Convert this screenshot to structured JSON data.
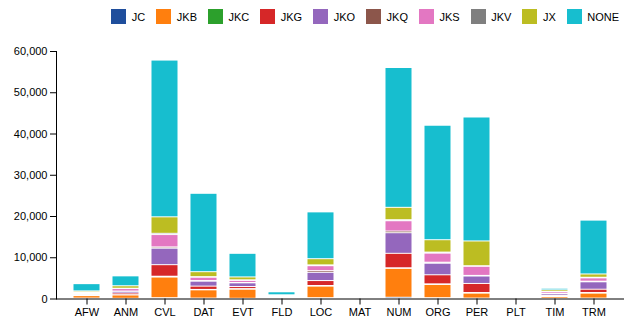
{
  "chart_data": {
    "type": "bar",
    "stacked": true,
    "categories": [
      "AFW",
      "ANM",
      "CVL",
      "DAT",
      "EVT",
      "FLD",
      "LOC",
      "MAT",
      "NUM",
      "ORG",
      "PER",
      "PLT",
      "TIM",
      "TRM"
    ],
    "series": [
      {
        "name": "JC",
        "color": "#1f4e9c",
        "values": [
          100,
          50,
          200,
          100,
          50,
          30,
          200,
          20,
          300,
          200,
          100,
          20,
          50,
          100
        ]
      },
      {
        "name": "JKB",
        "color": "#ff7f0e",
        "values": [
          600,
          800,
          5000,
          2000,
          2200,
          200,
          2800,
          30,
          7000,
          3200,
          1200,
          80,
          400,
          1200
        ]
      },
      {
        "name": "JKC",
        "color": "#2ca02c",
        "values": [
          80,
          80,
          200,
          100,
          150,
          30,
          150,
          20,
          150,
          150,
          150,
          20,
          40,
          150
        ]
      },
      {
        "name": "JKG",
        "color": "#d62728",
        "values": [
          150,
          400,
          2800,
          800,
          500,
          80,
          1200,
          30,
          3500,
          2200,
          2200,
          30,
          250,
          800
        ]
      },
      {
        "name": "JKO",
        "color": "#9467bd",
        "values": [
          250,
          400,
          4000,
          1200,
          900,
          150,
          2000,
          30,
          5000,
          2800,
          1800,
          80,
          400,
          1800
        ]
      },
      {
        "name": "JKQ",
        "color": "#8c564b",
        "values": [
          80,
          80,
          300,
          150,
          80,
          30,
          400,
          20,
          400,
          250,
          150,
          20,
          80,
          150
        ]
      },
      {
        "name": "JKS",
        "color": "#e377c2",
        "values": [
          200,
          600,
          3000,
          800,
          500,
          150,
          1200,
          30,
          2500,
          2200,
          2200,
          80,
          400,
          800
        ]
      },
      {
        "name": "JKV",
        "color": "#7f7f7f",
        "values": [
          80,
          80,
          300,
          150,
          150,
          30,
          200,
          20,
          250,
          250,
          150,
          20,
          80,
          150
        ]
      },
      {
        "name": "JX",
        "color": "#bcbd22",
        "values": [
          300,
          600,
          4000,
          1200,
          700,
          200,
          1500,
          30,
          3000,
          3000,
          6000,
          80,
          400,
          800
        ]
      },
      {
        "name": "NONE",
        "color": "#17becf",
        "values": [
          1760,
          2400,
          38000,
          19000,
          5720,
          730,
          11350,
          220,
          33900,
          27750,
          30050,
          170,
          380,
          13050
        ]
      }
    ],
    "ylim": [
      0,
      60000
    ],
    "yticks": [
      0,
      {
        "value": 10000,
        "label": "10,000"
      },
      {
        "value": 20000,
        "label": "20,000"
      },
      {
        "value": 30000,
        "label": "30,000"
      },
      {
        "value": 40000,
        "label": "40,000"
      },
      {
        "value": 50000,
        "label": "50,000"
      },
      {
        "value": 60000,
        "label": "60,000"
      }
    ],
    "legend": "upper right",
    "grid": false
  }
}
